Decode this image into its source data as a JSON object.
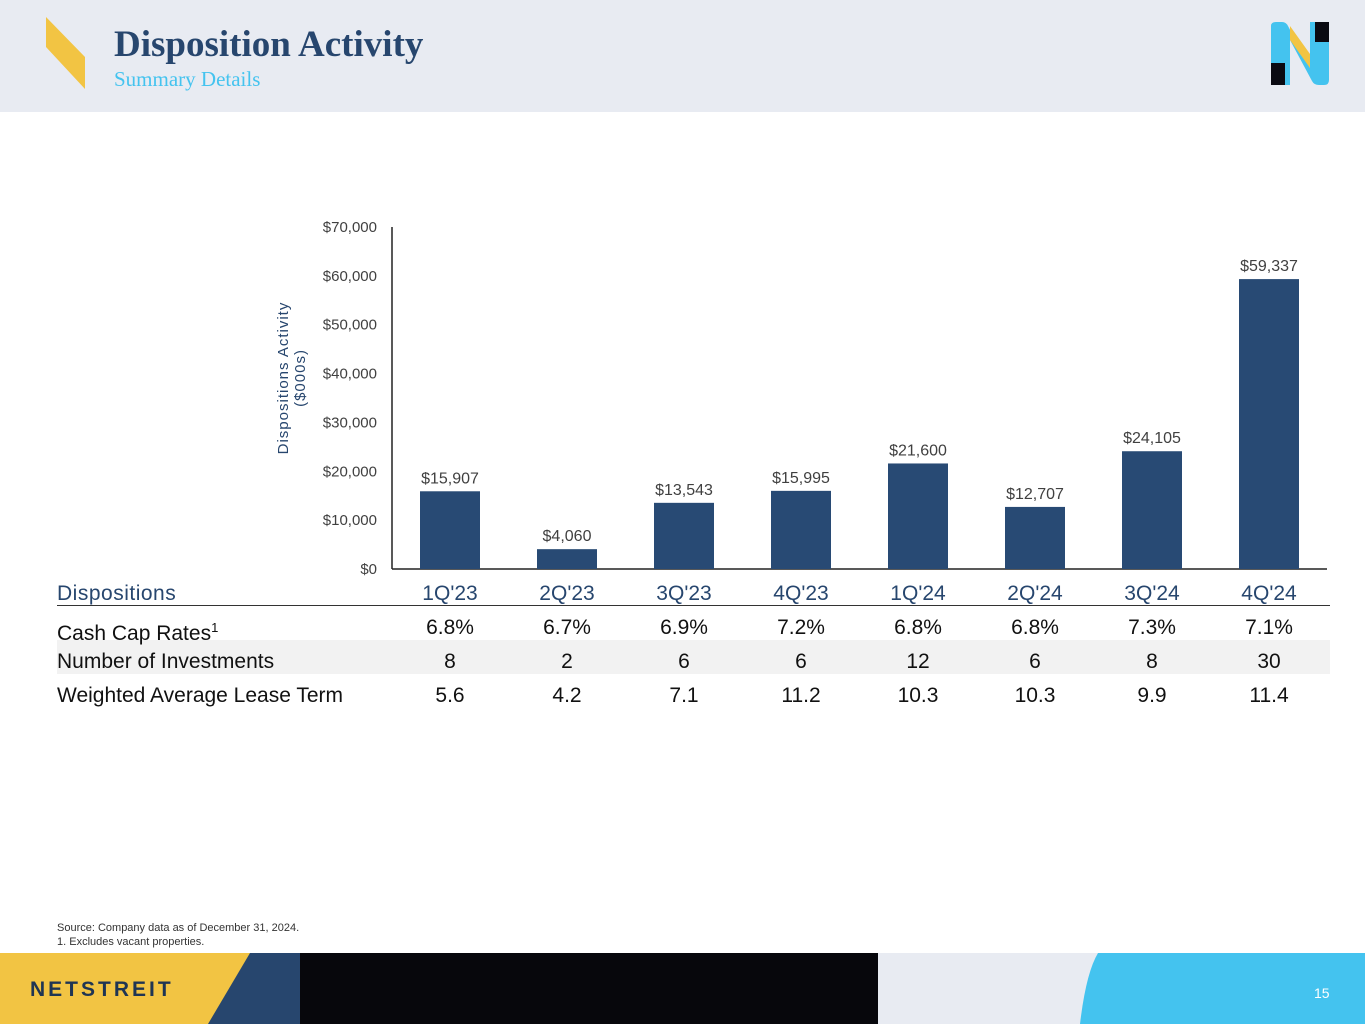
{
  "header": {
    "title": "Disposition Activity",
    "subtitle": "Summary Details"
  },
  "chart_data": {
    "type": "bar",
    "categories": [
      "1Q'23",
      "2Q'23",
      "3Q'23",
      "4Q'23",
      "1Q'24",
      "2Q'24",
      "3Q'24",
      "4Q'24"
    ],
    "values": [
      15907,
      4060,
      13543,
      15995,
      21600,
      12707,
      24105,
      59337
    ],
    "value_labels": [
      "$15,907",
      "$4,060",
      "$13,543",
      "$15,995",
      "$21,600",
      "$12,707",
      "$24,105",
      "$59,337"
    ],
    "ylabel_lines": [
      "Dispositions Activity",
      "($000s)"
    ],
    "ylim": [
      0,
      70000
    ],
    "yticks": [
      0,
      10000,
      20000,
      30000,
      40000,
      50000,
      60000,
      70000
    ],
    "ytick_labels": [
      "$0",
      "$10,000",
      "$20,000",
      "$30,000",
      "$40,000",
      "$50,000",
      "$60,000",
      "$70,000"
    ],
    "bar_color": "#284a74",
    "grid": false
  },
  "table": {
    "header_label": "Dispositions",
    "rows": [
      {
        "label": "Cash Cap Rates",
        "sup": "1",
        "values": [
          "6.8%",
          "6.7%",
          "6.9%",
          "7.2%",
          "6.8%",
          "6.8%",
          "7.3%",
          "7.1%"
        ]
      },
      {
        "label": "Number of Investments",
        "values": [
          "8",
          "2",
          "6",
          "6",
          "12",
          "6",
          "8",
          "30"
        ]
      },
      {
        "label": "Weighted Average Lease Term",
        "values": [
          "5.6",
          "4.2",
          "7.1",
          "11.2",
          "10.3",
          "10.3",
          "9.9",
          "11.4"
        ]
      }
    ]
  },
  "footnotes": {
    "source": "Source: Company data as of December 31, 2024.",
    "note1": "1.   Excludes vacant properties."
  },
  "footer": {
    "brand": "NETSTREIT",
    "page_number": "15"
  },
  "colors": {
    "navy": "#27466e",
    "sky": "#44c3ef",
    "gold": "#f2c443"
  }
}
